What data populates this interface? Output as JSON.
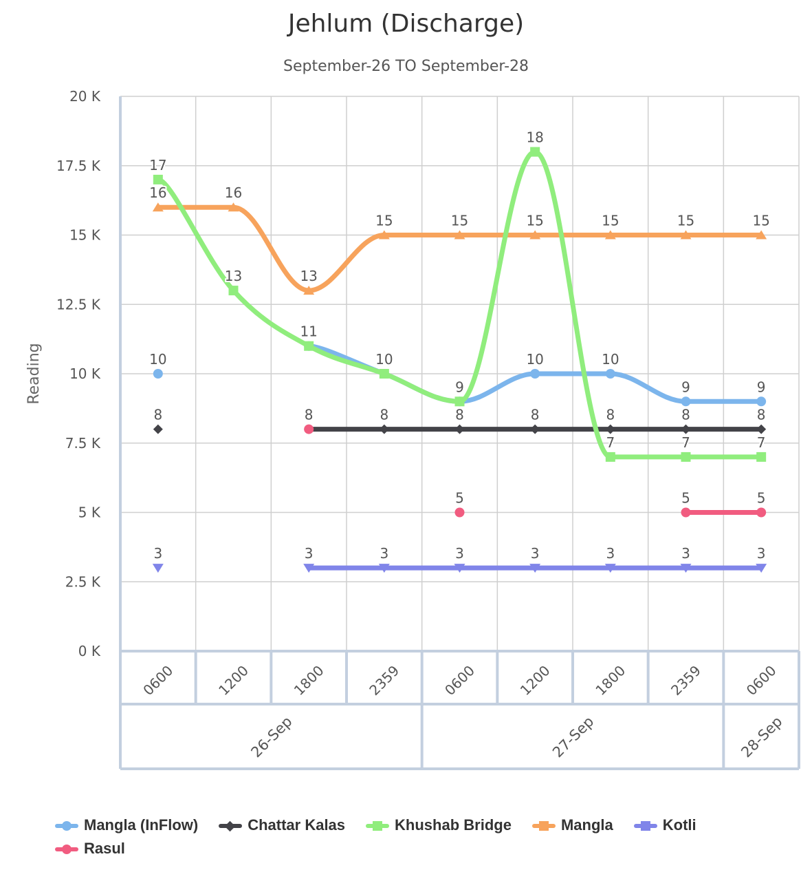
{
  "chart_data": {
    "type": "line",
    "title": "Jehlum (Discharge)",
    "subtitle": "September-26 TO September-28",
    "xlabel": "",
    "ylabel": "Reading",
    "ylim": [
      0,
      20000
    ],
    "yticks": [
      "0 K",
      "2.5 K",
      "5 K",
      "7.5 K",
      "10 K",
      "12.5 K",
      "15 K",
      "17.5 K",
      "20 K"
    ],
    "x_labels": [
      "0600",
      "1200",
      "1800",
      "2359",
      "0600",
      "1200",
      "1800",
      "2359",
      "0600"
    ],
    "x_groups": [
      {
        "label": "26-Sep",
        "span": 4
      },
      {
        "label": "27-Sep",
        "span": 4
      },
      {
        "label": "28-Sep",
        "span": 1
      }
    ],
    "grid": true,
    "legend_position": "bottom",
    "series": [
      {
        "name": "Mangla (InFlow)",
        "color": "#7cb5ec",
        "marker": "circle",
        "values": [
          10000,
          null,
          11000,
          10000,
          9000,
          10000,
          10000,
          9000,
          9000
        ],
        "labels": [
          "10",
          null,
          "11",
          "10",
          "9",
          "10",
          "10",
          "9",
          "9"
        ]
      },
      {
        "name": "Chattar Kalas",
        "color": "#434348",
        "marker": "diamond",
        "values": [
          8000,
          null,
          8000,
          8000,
          8000,
          8000,
          8000,
          8000,
          8000
        ],
        "labels": [
          "8",
          null,
          "8",
          "8",
          "8",
          "8",
          "8",
          "8",
          "8"
        ]
      },
      {
        "name": "Khushab Bridge",
        "color": "#90ed7d",
        "marker": "square",
        "values": [
          17000,
          13000,
          11000,
          10000,
          9000,
          18000,
          7000,
          7000,
          7000
        ],
        "labels": [
          "17",
          "13",
          "11",
          "10",
          "9",
          "18",
          "7",
          "7",
          "7"
        ]
      },
      {
        "name": "Mangla",
        "color": "#f7a35c",
        "marker": "triangle",
        "values": [
          16000,
          16000,
          13000,
          15000,
          15000,
          15000,
          15000,
          15000,
          15000
        ],
        "labels": [
          "16",
          "16",
          "13",
          "15",
          "15",
          "15",
          "15",
          "15",
          "15"
        ]
      },
      {
        "name": "Kotli",
        "color": "#8085e9",
        "marker": "triangle-down",
        "values": [
          3000,
          null,
          3000,
          3000,
          3000,
          3000,
          3000,
          3000,
          3000
        ],
        "labels": [
          "3",
          null,
          "3",
          "3",
          "3",
          "3",
          "3",
          "3",
          "3"
        ]
      },
      {
        "name": "Rasul",
        "color": "#f15c80",
        "marker": "circle",
        "values": [
          null,
          null,
          8000,
          null,
          5000,
          null,
          null,
          5000,
          5000
        ],
        "labels": [
          null,
          null,
          "8",
          null,
          "5",
          null,
          null,
          "5",
          "5"
        ]
      }
    ]
  }
}
